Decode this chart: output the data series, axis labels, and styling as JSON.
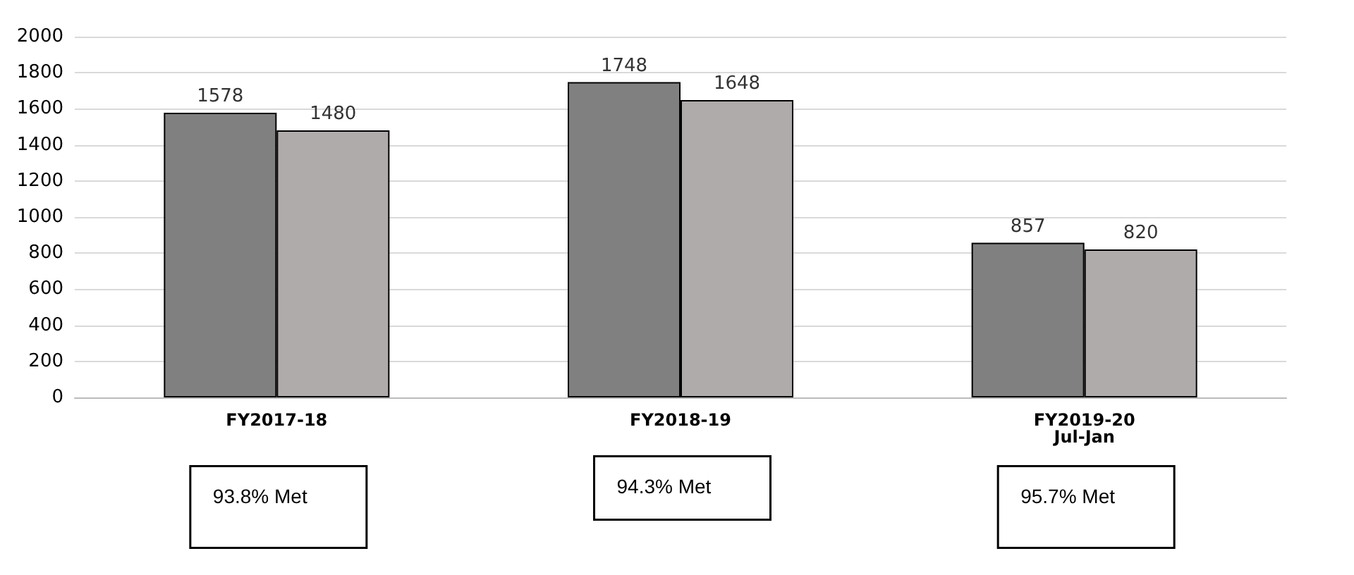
{
  "chart_data": {
    "type": "bar",
    "categories": [
      "FY2017-18",
      "FY2018-19",
      "FY2019-20\nJul-Jan"
    ],
    "series": [
      {
        "color": "#808080",
        "values": [
          1578,
          1748,
          857
        ]
      },
      {
        "color": "#afabab",
        "values": [
          1480,
          1648,
          820
        ]
      }
    ],
    "ylim": [
      0,
      2000
    ],
    "yticks": [
      0,
      200,
      400,
      600,
      800,
      1000,
      1200,
      1400,
      1600,
      1800,
      2000
    ],
    "grid": "y",
    "data_labels": true,
    "annotations": [
      "93.8% Met",
      "94.3% Met",
      "95.7% Met"
    ]
  }
}
